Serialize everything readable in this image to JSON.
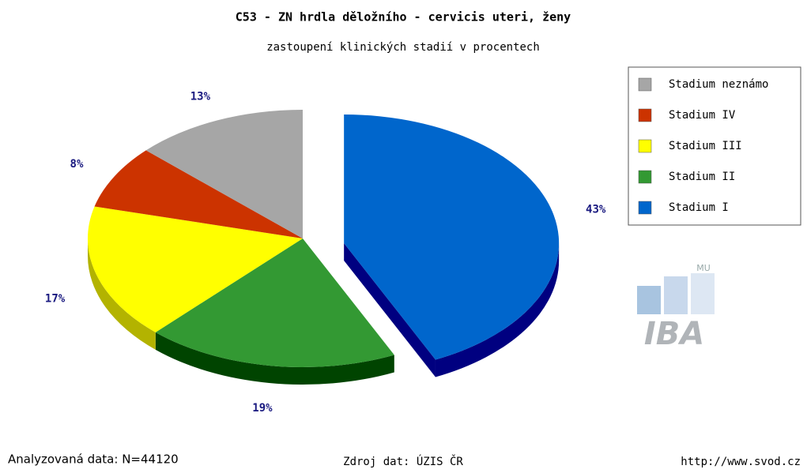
{
  "chart_data": {
    "type": "pie",
    "title": "C53 - ZN hrdla děložního - cervicis uteri, ženy",
    "subtitle": "zastoupení klinických stadií v procentech",
    "categories": [
      "Stadium I",
      "Stadium II",
      "Stadium III",
      "Stadium IV",
      "Stadium neznámo"
    ],
    "values": [
      43,
      19,
      17,
      8,
      13
    ],
    "value_labels": [
      "43%",
      "19%",
      "17%",
      "8%",
      "13%"
    ],
    "colors": [
      "#0066cc",
      "#339933",
      "#ffff00",
      "#cc3300",
      "#a6a6a6"
    ],
    "side_colors": [
      "#000080",
      "#004400",
      "#b3b300",
      "#800000",
      "#666666"
    ],
    "exploded": [
      true,
      false,
      false,
      false,
      false
    ],
    "legend": "top-right"
  },
  "footer": {
    "left": "Analyzovaná data: N=44120",
    "center": "Zdroj dat: ÚZIS ČR",
    "right": "http://www.svod.cz"
  },
  "logo": {
    "top": "MU",
    "main": "IBA"
  }
}
